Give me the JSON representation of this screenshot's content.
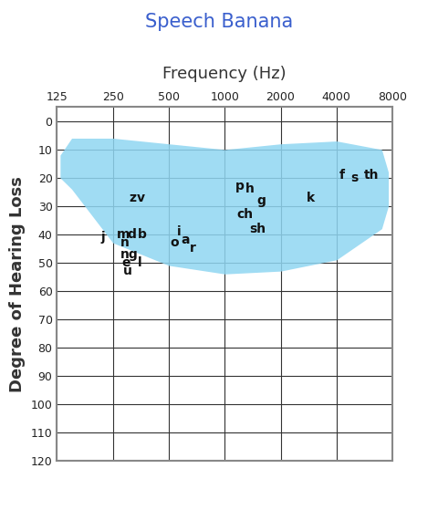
{
  "chart_data": {
    "type": "scatter",
    "title": "Speech Banana",
    "x_label": "Frequency (Hz)",
    "y_label": "Degree of Hearing Loss",
    "log": "x",
    "grid": true,
    "marker": "none",
    "xlim": [
      125,
      8000
    ],
    "xticks": [
      125,
      250,
      500,
      1000,
      2000,
      4000,
      8000
    ],
    "ylim": [
      120,
      -5
    ],
    "yticks": [
      0,
      10,
      20,
      30,
      40,
      50,
      60,
      70,
      80,
      90,
      100,
      110,
      120
    ],
    "labels": [
      "z",
      "v",
      "j",
      "m",
      "d",
      "b",
      "n",
      "ng",
      "e",
      "l",
      "u",
      "i",
      "o",
      "a",
      "r",
      "p",
      "h",
      "g",
      "ch",
      "sh",
      "k",
      "f",
      "s",
      "th"
    ],
    "x": [
      320,
      354,
      220,
      283,
      316,
      360,
      290,
      305,
      295,
      350,
      300,
      565,
      535,
      615,
      670,
      1200,
      1370,
      1570,
      1280,
      1500,
      2890,
      4280,
      5000,
      6190
    ],
    "values": [
      27,
      27,
      41,
      40,
      40,
      40,
      43,
      47,
      50,
      50,
      53,
      39,
      43,
      42,
      45,
      23,
      24,
      28,
      33,
      38,
      27,
      19,
      20,
      19
    ],
    "speech_range": {
      "color": "#8fd6f2",
      "x": [
        130,
        150,
        250,
        500,
        1000,
        2000,
        4000,
        7000,
        7600
      ],
      "upper": [
        12,
        6,
        6,
        8,
        10,
        8,
        7,
        10,
        18
      ],
      "lower": [
        20,
        24,
        43,
        51,
        54,
        53,
        49,
        38,
        30
      ]
    }
  }
}
